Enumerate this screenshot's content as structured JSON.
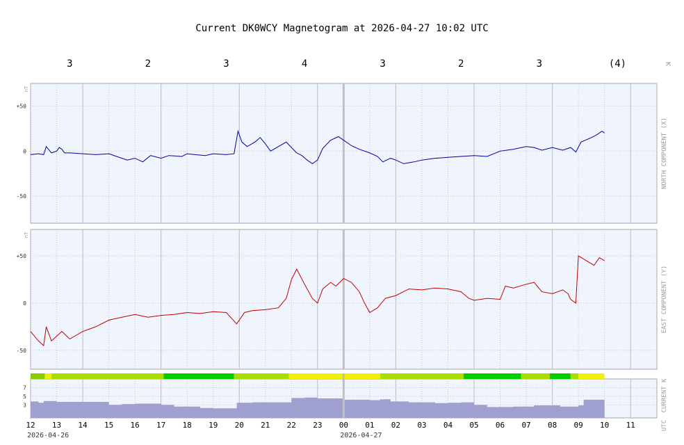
{
  "chart_data": {
    "type": "line",
    "title": "Current DK0WCY Magnetogram at 2026-04-27 10:02 UTC",
    "k_label": "K",
    "k_indices": [
      "3",
      "2",
      "3",
      "4",
      "3",
      "2",
      "3",
      "(4)"
    ],
    "x_ticks": [
      "12",
      "13",
      "14",
      "15",
      "16",
      "17",
      "18",
      "19",
      "20",
      "21",
      "22",
      "23",
      "00",
      "01",
      "02",
      "03",
      "04",
      "05",
      "06",
      "07",
      "08",
      "09",
      "10",
      "11"
    ],
    "x_axis_label": "UTC",
    "dates": [
      "2026-04-26",
      "2026-04-27"
    ],
    "midnight_hour": 24,
    "x_range_hours": [
      12,
      36
    ],
    "panels": [
      {
        "name": "north",
        "ylabel": "NORTH COMPONENT (X)",
        "unit": "nT",
        "ylim": [
          -80,
          75
        ],
        "yticks": [
          {
            "v": 50,
            "label": "+50"
          },
          {
            "v": 0,
            "label": "0"
          },
          {
            "v": -50,
            "label": "-50"
          }
        ],
        "color": "#0000a0",
        "series": [
          [
            12.0,
            -4
          ],
          [
            12.3,
            -3
          ],
          [
            12.5,
            -4
          ],
          [
            12.6,
            5
          ],
          [
            12.8,
            -2
          ],
          [
            13.0,
            0
          ],
          [
            13.1,
            4
          ],
          [
            13.2,
            2
          ],
          [
            13.3,
            -2
          ],
          [
            13.5,
            -2
          ],
          [
            14.0,
            -3
          ],
          [
            14.5,
            -4
          ],
          [
            15.0,
            -3
          ],
          [
            15.3,
            -6
          ],
          [
            15.7,
            -10
          ],
          [
            16.0,
            -8
          ],
          [
            16.3,
            -12
          ],
          [
            16.6,
            -5
          ],
          [
            17.0,
            -8
          ],
          [
            17.3,
            -5
          ],
          [
            17.8,
            -6
          ],
          [
            18.0,
            -3
          ],
          [
            18.3,
            -4
          ],
          [
            18.7,
            -5
          ],
          [
            19.0,
            -3
          ],
          [
            19.5,
            -4
          ],
          [
            19.8,
            -3
          ],
          [
            19.95,
            22
          ],
          [
            20.1,
            10
          ],
          [
            20.3,
            5
          ],
          [
            20.6,
            10
          ],
          [
            20.8,
            15
          ],
          [
            21.0,
            8
          ],
          [
            21.2,
            0
          ],
          [
            21.5,
            5
          ],
          [
            21.8,
            10
          ],
          [
            22.0,
            4
          ],
          [
            22.2,
            -2
          ],
          [
            22.4,
            -5
          ],
          [
            22.6,
            -10
          ],
          [
            22.8,
            -14
          ],
          [
            23.0,
            -10
          ],
          [
            23.2,
            3
          ],
          [
            23.5,
            12
          ],
          [
            23.8,
            16
          ],
          [
            24.0,
            12
          ],
          [
            24.3,
            6
          ],
          [
            24.6,
            2
          ],
          [
            25.0,
            -2
          ],
          [
            25.3,
            -6
          ],
          [
            25.5,
            -12
          ],
          [
            25.8,
            -8
          ],
          [
            26.0,
            -10
          ],
          [
            26.3,
            -14
          ],
          [
            26.7,
            -12
          ],
          [
            27.0,
            -10
          ],
          [
            27.5,
            -8
          ],
          [
            28.0,
            -7
          ],
          [
            28.5,
            -6
          ],
          [
            29.0,
            -5
          ],
          [
            29.5,
            -6
          ],
          [
            30.0,
            0
          ],
          [
            30.5,
            2
          ],
          [
            31.0,
            5
          ],
          [
            31.3,
            4
          ],
          [
            31.6,
            1
          ],
          [
            32.0,
            4
          ],
          [
            32.4,
            1
          ],
          [
            32.7,
            4
          ],
          [
            32.9,
            -1
          ],
          [
            33.1,
            10
          ],
          [
            33.5,
            15
          ],
          [
            33.7,
            18
          ],
          [
            33.9,
            22
          ],
          [
            34.0,
            20
          ]
        ]
      },
      {
        "name": "east",
        "ylabel": "EAST COMPONENT (Y)",
        "unit": "nT",
        "ylim": [
          -70,
          78
        ],
        "yticks": [
          {
            "v": 50,
            "label": "+50"
          },
          {
            "v": 0,
            "label": "0"
          },
          {
            "v": -50,
            "label": "-50"
          }
        ],
        "color": "#c00000",
        "series": [
          [
            12.0,
            -30
          ],
          [
            12.3,
            -40
          ],
          [
            12.5,
            -45
          ],
          [
            12.6,
            -25
          ],
          [
            12.8,
            -40
          ],
          [
            13.0,
            -35
          ],
          [
            13.2,
            -30
          ],
          [
            13.5,
            -38
          ],
          [
            14.0,
            -30
          ],
          [
            14.5,
            -25
          ],
          [
            15.0,
            -18
          ],
          [
            15.5,
            -15
          ],
          [
            16.0,
            -12
          ],
          [
            16.5,
            -15
          ],
          [
            17.0,
            -13
          ],
          [
            17.5,
            -12
          ],
          [
            18.0,
            -10
          ],
          [
            18.5,
            -11
          ],
          [
            19.0,
            -9
          ],
          [
            19.5,
            -10
          ],
          [
            19.9,
            -22
          ],
          [
            20.2,
            -10
          ],
          [
            20.5,
            -8
          ],
          [
            21.0,
            -7
          ],
          [
            21.5,
            -5
          ],
          [
            21.8,
            5
          ],
          [
            22.0,
            25
          ],
          [
            22.2,
            36
          ],
          [
            22.5,
            20
          ],
          [
            22.8,
            5
          ],
          [
            23.0,
            0
          ],
          [
            23.2,
            15
          ],
          [
            23.5,
            22
          ],
          [
            23.7,
            18
          ],
          [
            24.0,
            26
          ],
          [
            24.3,
            22
          ],
          [
            24.6,
            12
          ],
          [
            24.8,
            0
          ],
          [
            25.0,
            -10
          ],
          [
            25.3,
            -5
          ],
          [
            25.6,
            5
          ],
          [
            26.0,
            8
          ],
          [
            26.5,
            15
          ],
          [
            27.0,
            14
          ],
          [
            27.5,
            16
          ],
          [
            28.0,
            15
          ],
          [
            28.5,
            12
          ],
          [
            28.8,
            5
          ],
          [
            29.0,
            3
          ],
          [
            29.5,
            5
          ],
          [
            30.0,
            4
          ],
          [
            30.2,
            18
          ],
          [
            30.5,
            16
          ],
          [
            31.0,
            20
          ],
          [
            31.3,
            22
          ],
          [
            31.6,
            12
          ],
          [
            32.0,
            10
          ],
          [
            32.4,
            14
          ],
          [
            32.6,
            10
          ],
          [
            32.7,
            4
          ],
          [
            32.9,
            0
          ],
          [
            33.0,
            50
          ],
          [
            33.3,
            45
          ],
          [
            33.6,
            40
          ],
          [
            33.8,
            48
          ],
          [
            34.0,
            45
          ]
        ]
      }
    ],
    "current_k": {
      "ylabel": "CURRENT K",
      "ylim": [
        0,
        9
      ],
      "yticks": [
        {
          "v": 7,
          "label": "7"
        },
        {
          "v": 5,
          "label": "5"
        },
        {
          "v": 3,
          "label": "3"
        }
      ],
      "bar_color": "#a0a0d0",
      "values": [
        [
          12.0,
          3.8
        ],
        [
          12.3,
          3.5
        ],
        [
          12.5,
          3.9
        ],
        [
          13.0,
          3.7
        ],
        [
          14.0,
          3.7
        ],
        [
          15.0,
          3.0
        ],
        [
          15.5,
          3.2
        ],
        [
          16.0,
          3.3
        ],
        [
          17.0,
          3.0
        ],
        [
          17.5,
          2.6
        ],
        [
          18.5,
          2.3
        ],
        [
          19.0,
          2.2
        ],
        [
          19.9,
          3.5
        ],
        [
          20.5,
          3.6
        ],
        [
          21.5,
          3.6
        ],
        [
          22.0,
          4.6
        ],
        [
          22.5,
          4.7
        ],
        [
          23.0,
          4.5
        ],
        [
          24.0,
          4.2
        ],
        [
          25.0,
          4.1
        ],
        [
          25.4,
          4.3
        ],
        [
          25.8,
          3.8
        ],
        [
          26.5,
          3.6
        ],
        [
          27.5,
          3.4
        ],
        [
          28.0,
          3.5
        ],
        [
          28.5,
          3.6
        ],
        [
          29.0,
          3.0
        ],
        [
          29.5,
          2.5
        ],
        [
          30.5,
          2.6
        ],
        [
          31.3,
          2.9
        ],
        [
          32.3,
          2.6
        ],
        [
          33.0,
          2.9
        ],
        [
          33.2,
          4.2
        ],
        [
          33.8,
          4.2
        ],
        [
          34.0,
          4.2
        ]
      ],
      "status_bar": [
        {
          "from": 12.0,
          "to": 12.55,
          "color": "#88cc00"
        },
        {
          "from": 12.55,
          "to": 12.8,
          "color": "#f0f000"
        },
        {
          "from": 12.8,
          "to": 17.1,
          "color": "#aadd00"
        },
        {
          "from": 17.1,
          "to": 19.8,
          "color": "#00cc00"
        },
        {
          "from": 19.8,
          "to": 21.9,
          "color": "#aadd00"
        },
        {
          "from": 21.9,
          "to": 25.4,
          "color": "#f0f000"
        },
        {
          "from": 25.4,
          "to": 28.6,
          "color": "#aadd00"
        },
        {
          "from": 28.6,
          "to": 30.8,
          "color": "#00cc00"
        },
        {
          "from": 30.8,
          "to": 31.9,
          "color": "#aadd00"
        },
        {
          "from": 31.9,
          "to": 32.7,
          "color": "#00cc00"
        },
        {
          "from": 32.7,
          "to": 33.0,
          "color": "#aadd00"
        },
        {
          "from": 33.0,
          "to": 34.0,
          "color": "#f0f000"
        }
      ]
    },
    "colors": {
      "panel_bg": "#f0f4fc",
      "grid": "#c4c8d4",
      "axis_text": "#333333",
      "side_label": "#9a9a9a",
      "midnight_line": "#c0c0c0",
      "border": "#a0a4b0"
    }
  }
}
